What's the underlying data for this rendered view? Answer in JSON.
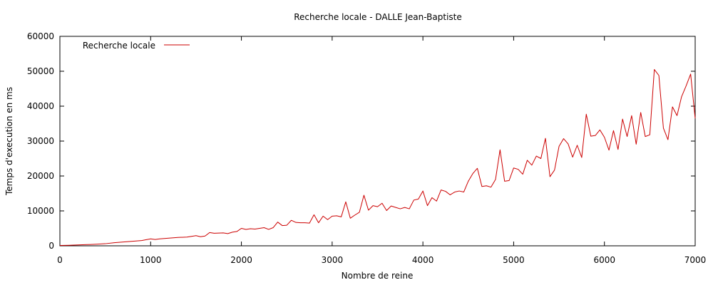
{
  "chart_data": {
    "type": "line",
    "title": "Recherche locale - DALLE Jean-Baptiste",
    "xlabel": "Nombre de reine",
    "ylabel": "Temps d'execution en ms",
    "xlim": [
      0,
      7000
    ],
    "ylim": [
      0,
      60000
    ],
    "xticks": [
      0,
      1000,
      2000,
      3000,
      4000,
      5000,
      6000,
      7000
    ],
    "yticks": [
      0,
      10000,
      20000,
      30000,
      40000,
      50000,
      60000
    ],
    "grid": false,
    "legend_position": "top-left",
    "colors": {
      "series": "#cc0000",
      "axis": "#000000"
    },
    "series": [
      {
        "name": "Recherche locale",
        "x": [
          0,
          100,
          200,
          300,
          400,
          500,
          600,
          700,
          800,
          900,
          1000,
          1050,
          1100,
          1200,
          1300,
          1400,
          1500,
          1550,
          1600,
          1650,
          1700,
          1800,
          1850,
          1900,
          1950,
          2000,
          2050,
          2100,
          2150,
          2200,
          2250,
          2300,
          2350,
          2400,
          2450,
          2500,
          2550,
          2600,
          2650,
          2700,
          2750,
          2800,
          2850,
          2900,
          2950,
          3000,
          3050,
          3100,
          3150,
          3200,
          3250,
          3300,
          3350,
          3400,
          3450,
          3500,
          3550,
          3600,
          3650,
          3700,
          3750,
          3800,
          3850,
          3900,
          3950,
          4000,
          4050,
          4100,
          4150,
          4200,
          4250,
          4300,
          4350,
          4400,
          4450,
          4500,
          4550,
          4600,
          4650,
          4700,
          4750,
          4800,
          4850,
          4900,
          4950,
          5000,
          5050,
          5100,
          5150,
          5200,
          5250,
          5300,
          5350,
          5400,
          5450,
          5500,
          5550,
          5600,
          5650,
          5700,
          5750,
          5800,
          5850,
          5900,
          5950,
          6000,
          6050,
          6100,
          6150,
          6200,
          6250,
          6300,
          6350,
          6400,
          6450,
          6500,
          6550,
          6600,
          6650,
          6700,
          6750,
          6800,
          6850,
          6900,
          6950,
          7000
        ],
        "y": [
          100,
          150,
          250,
          350,
          450,
          600,
          900,
          1100,
          1300,
          1500,
          2000,
          1800,
          2000,
          2200,
          2400,
          2500,
          2900,
          2600,
          2800,
          3800,
          3600,
          3700,
          3500,
          3900,
          4100,
          5000,
          4700,
          4900,
          4800,
          5000,
          5200,
          4700,
          5200,
          6800,
          5800,
          5900,
          7300,
          6700,
          6600,
          6600,
          6500,
          8900,
          6600,
          8500,
          7500,
          8500,
          8600,
          8300,
          12600,
          7900,
          8800,
          9600,
          14500,
          10200,
          11500,
          11200,
          12200,
          10100,
          11400,
          11000,
          10600,
          11000,
          10600,
          13100,
          13400,
          15700,
          11500,
          13800,
          12800,
          16000,
          15600,
          14600,
          15400,
          15700,
          15400,
          18500,
          20700,
          22200,
          17000,
          17200,
          16800,
          19000,
          27500,
          18500,
          18700,
          22300,
          21900,
          20500,
          24500,
          23100,
          25700,
          25000,
          30800,
          19800,
          21700,
          28500,
          30700,
          29200,
          25400,
          28800,
          25300,
          37700,
          31400,
          31600,
          33200,
          31100,
          27400,
          33000,
          27600,
          36300,
          31300,
          37300,
          29100,
          38200,
          31300,
          31800,
          50500,
          48800,
          33700,
          30400,
          39800,
          37300,
          42700,
          45800,
          49200,
          36500
        ]
      }
    ]
  }
}
